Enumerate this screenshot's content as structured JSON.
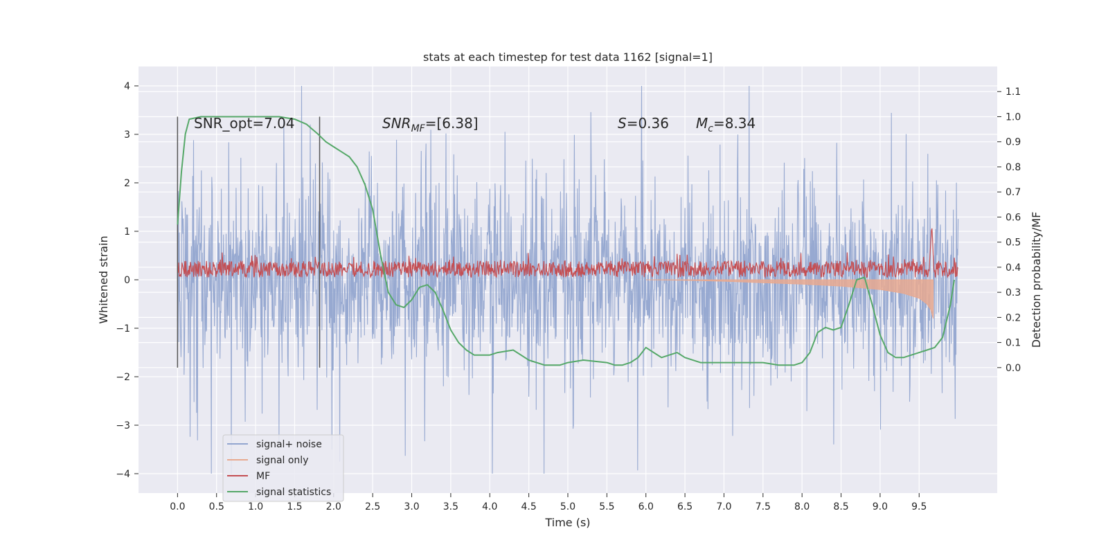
{
  "chart_data": {
    "type": "line",
    "title": "stats at each timestep for test data 1162 [signal=1]",
    "xlabel": "Time (s)",
    "ylabel": "Whitened strain",
    "ylabel_right": "Detection probability/MF",
    "xlim": [
      -0.5,
      10.5
    ],
    "ylim": [
      -4.4,
      4.4
    ],
    "ylim_right": [
      -0.5,
      1.2
    ],
    "x_ticks": [
      "0.0",
      "0.5",
      "1.0",
      "1.5",
      "2.0",
      "2.5",
      "3.0",
      "3.5",
      "4.0",
      "4.5",
      "5.0",
      "5.5",
      "6.0",
      "6.5",
      "7.0",
      "7.5",
      "8.0",
      "8.5",
      "9.0",
      "9.5"
    ],
    "y_ticks": [
      "4",
      "3",
      "2",
      "1",
      "0",
      "−1",
      "−2",
      "−3",
      "−4"
    ],
    "y_ticks_right": [
      "1.1",
      "1.0",
      "0.9",
      "0.8",
      "0.7",
      "0.6",
      "0.5",
      "0.4",
      "0.3",
      "0.2",
      "0.1",
      "0.0"
    ],
    "grid": true,
    "legend_position": "lower-left",
    "annotations": {
      "snr_opt": "SNR_opt=7.04",
      "snr_mf_prefix": "SNR",
      "snr_mf_sub": "MF",
      "snr_mf_value": "=[6.38]",
      "s_symbol": "S",
      "s_value": "=0.36",
      "mc_symbol": "M",
      "mc_sub": "c",
      "mc_value": "=8.34"
    },
    "vlines_x": [
      0.0,
      1.82
    ],
    "noise_envelope": {
      "x": [
        0.0,
        10.0
      ],
      "upper_peak": 4.0,
      "lower_peak": -4.0,
      "typical_upper": 2.8,
      "typical_lower": -2.8
    },
    "signal_only": {
      "x": [
        6.0,
        6.5,
        7.0,
        7.5,
        8.0,
        8.5,
        9.0,
        9.3,
        9.5,
        9.6,
        9.65,
        9.68
      ],
      "y": [
        0.0,
        -0.01,
        -0.03,
        -0.06,
        -0.09,
        -0.13,
        -0.2,
        -0.28,
        -0.38,
        -0.5,
        -0.62,
        -0.8
      ]
    },
    "series": [
      {
        "name": "signal+ noise",
        "color": "#92a5cf"
      },
      {
        "name": "signal only",
        "color": "#e8a990"
      },
      {
        "name": "MF",
        "color": "#c44e52"
      },
      {
        "name": "signal statistics",
        "color": "#55a868",
        "x": [
          0.0,
          0.05,
          0.1,
          0.15,
          0.3,
          0.5,
          1.0,
          1.3,
          1.5,
          1.65,
          1.8,
          1.9,
          2.0,
          2.1,
          2.2,
          2.3,
          2.4,
          2.5,
          2.6,
          2.7,
          2.8,
          2.9,
          3.0,
          3.1,
          3.2,
          3.3,
          3.4,
          3.5,
          3.6,
          3.7,
          3.8,
          3.9,
          4.0,
          4.1,
          4.3,
          4.5,
          4.7,
          4.9,
          5.0,
          5.2,
          5.5,
          5.6,
          5.7,
          5.8,
          5.9,
          6.0,
          6.1,
          6.2,
          6.3,
          6.4,
          6.5,
          6.7,
          7.0,
          7.3,
          7.5,
          7.7,
          7.9,
          8.0,
          8.1,
          8.2,
          8.3,
          8.4,
          8.5,
          8.6,
          8.7,
          8.8,
          8.9,
          9.0,
          9.1,
          9.2,
          9.3,
          9.4,
          9.5,
          9.6,
          9.7,
          9.8,
          9.9,
          9.95
        ],
        "y": [
          0.57,
          0.78,
          0.93,
          0.99,
          1.0,
          1.0,
          1.0,
          1.0,
          0.99,
          0.97,
          0.93,
          0.9,
          0.88,
          0.86,
          0.84,
          0.8,
          0.73,
          0.63,
          0.45,
          0.3,
          0.25,
          0.24,
          0.27,
          0.32,
          0.33,
          0.3,
          0.23,
          0.15,
          0.1,
          0.07,
          0.05,
          0.05,
          0.05,
          0.06,
          0.07,
          0.03,
          0.01,
          0.01,
          0.02,
          0.03,
          0.02,
          0.01,
          0.01,
          0.02,
          0.04,
          0.08,
          0.06,
          0.04,
          0.05,
          0.06,
          0.04,
          0.02,
          0.02,
          0.02,
          0.02,
          0.01,
          0.01,
          0.02,
          0.06,
          0.14,
          0.16,
          0.15,
          0.16,
          0.25,
          0.35,
          0.36,
          0.25,
          0.13,
          0.06,
          0.04,
          0.04,
          0.05,
          0.06,
          0.07,
          0.08,
          0.12,
          0.25,
          0.35
        ]
      }
    ]
  }
}
